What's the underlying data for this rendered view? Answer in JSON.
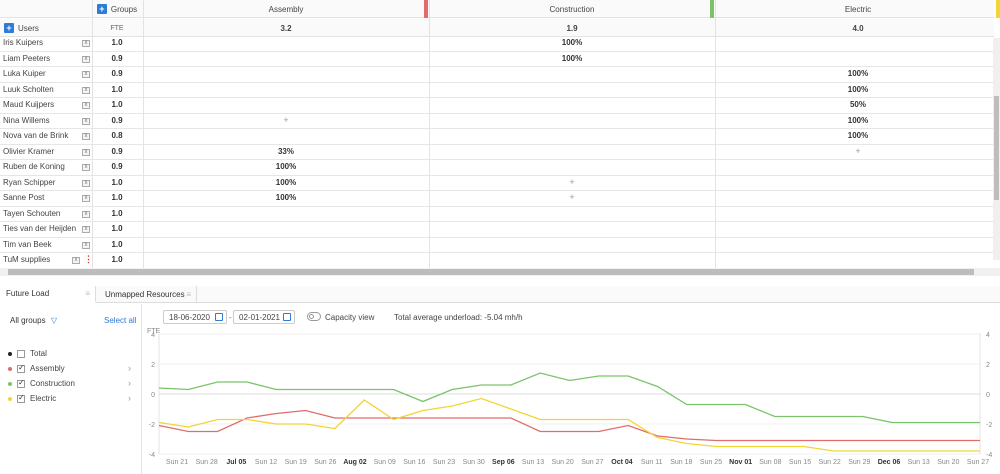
{
  "grid": {
    "groups_label": "Groups",
    "users_label": "Users",
    "fte_label": "FTE",
    "groups": [
      {
        "name": "Assembly",
        "fte": "3.2",
        "color": "#e06c6c"
      },
      {
        "name": "Construction",
        "fte": "1.9",
        "color": "#7ac36a"
      },
      {
        "name": "Electric",
        "fte": "4.0",
        "color": "#f2d534"
      }
    ],
    "rows": [
      {
        "name": "Iris Kuipers",
        "fte": "1.0",
        "cells": [
          "",
          "100%",
          ""
        ]
      },
      {
        "name": "Liam Peeters",
        "fte": "0.9",
        "cells": [
          "",
          "100%",
          ""
        ]
      },
      {
        "name": "Luka Kuiper",
        "fte": "0.9",
        "cells": [
          "",
          "",
          "100%"
        ]
      },
      {
        "name": "Luuk Scholten",
        "fte": "1.0",
        "cells": [
          "",
          "",
          "100%"
        ]
      },
      {
        "name": "Maud Kuijpers",
        "fte": "1.0",
        "cells": [
          "",
          "",
          "50%"
        ]
      },
      {
        "name": "Nina Willems",
        "fte": "0.9",
        "cells": [
          "+",
          "",
          "100%"
        ]
      },
      {
        "name": "Nova van de Brink",
        "fte": "0.8",
        "cells": [
          "",
          "",
          "100%"
        ]
      },
      {
        "name": "Olivier Kramer",
        "fte": "0.9",
        "cells": [
          "33%",
          "",
          "+"
        ]
      },
      {
        "name": "Ruben de Koning",
        "fte": "0.9",
        "cells": [
          "100%",
          "",
          ""
        ]
      },
      {
        "name": "Ryan Schipper",
        "fte": "1.0",
        "cells": [
          "100%",
          "+",
          ""
        ]
      },
      {
        "name": "Sanne Post",
        "fte": "1.0",
        "cells": [
          "100%",
          "+",
          ""
        ]
      },
      {
        "name": "Tayen Schouten",
        "fte": "1.0",
        "cells": [
          "",
          "",
          ""
        ]
      },
      {
        "name": "Ties van der Heijden",
        "fte": "1.0",
        "cells": [
          "",
          "",
          ""
        ]
      },
      {
        "name": "Tim van Beek",
        "fte": "1.0",
        "cells": [
          "",
          "",
          ""
        ]
      },
      {
        "name": "TuM supplies",
        "fte": "1.0",
        "cells": [
          "",
          "",
          ""
        ]
      }
    ]
  },
  "tabs": {
    "future_load": "Future Load",
    "unmapped": "Unmapped Resources"
  },
  "filters": {
    "all_groups": "All groups",
    "select_all": "Select all",
    "items": [
      {
        "label": "Total",
        "color": "#222222",
        "checked": false
      },
      {
        "label": "Assembly",
        "color": "#e06c6c",
        "checked": true
      },
      {
        "label": "Construction",
        "color": "#7ac36a",
        "checked": true
      },
      {
        "label": "Electric",
        "color": "#f2d534",
        "checked": true
      }
    ]
  },
  "toolbar": {
    "date_from": "18-06-2020",
    "date_sep": "-",
    "date_to": "02-01-2021",
    "capacity_view": "Capacity view",
    "underload": "Total average underload: -5.04 mh/h"
  },
  "chart_data": {
    "type": "line",
    "ylabel": "FTE",
    "ylim": [
      -4,
      4
    ],
    "y_ticks": [
      "4",
      "2",
      "0",
      "-2",
      "-4"
    ],
    "x_ticks": [
      "Sun 21",
      "Sun 28",
      "Jul 05",
      "Sun 12",
      "Sun 19",
      "Sun 26",
      "Aug 02",
      "Sun 09",
      "Sun 16",
      "Sun 23",
      "Sun 30",
      "Sep 06",
      "Sun 13",
      "Sun 20",
      "Sun 27",
      "Oct 04",
      "Sun 11",
      "Sun 18",
      "Sun 25",
      "Nov 01",
      "Sun 08",
      "Sun 15",
      "Sun 22",
      "Sun 29",
      "Dec 06",
      "Sun 13",
      "Sun 20",
      "Sun 27"
    ],
    "bold_ticks": [
      "Jul 05",
      "Aug 02",
      "Sep 06",
      "Oct 04",
      "Nov 01",
      "Dec 06"
    ],
    "series": [
      {
        "name": "Construction",
        "color": "#7ac36a",
        "values": [
          0.4,
          0.3,
          0.8,
          0.8,
          0.3,
          0.3,
          0.3,
          0.3,
          0.3,
          -0.5,
          0.3,
          0.6,
          0.6,
          1.4,
          0.9,
          1.2,
          1.2,
          0.5,
          -0.7,
          -0.7,
          -0.7,
          -1.5,
          -1.5,
          -1.5,
          -1.5,
          -1.9,
          -1.9,
          -1.9,
          -1.9
        ]
      },
      {
        "name": "Assembly",
        "color": "#e06c6c",
        "values": [
          -2.1,
          -2.5,
          -2.5,
          -1.6,
          -1.3,
          -1.1,
          -1.6,
          -1.6,
          -1.6,
          -1.6,
          -1.6,
          -1.6,
          -1.6,
          -2.5,
          -2.5,
          -2.5,
          -2.1,
          -2.8,
          -3.0,
          -3.1,
          -3.1,
          -3.1,
          -3.1,
          -3.1,
          -3.1,
          -3.1,
          -3.1,
          -3.1,
          -3.1
        ]
      },
      {
        "name": "Electric",
        "color": "#f2d534",
        "values": [
          -1.9,
          -2.2,
          -1.7,
          -1.7,
          -2.0,
          -2.0,
          -2.3,
          -0.4,
          -1.7,
          -1.1,
          -0.8,
          -0.3,
          -1.0,
          -1.7,
          -1.7,
          -1.7,
          -1.7,
          -2.9,
          -3.3,
          -3.5,
          -3.5,
          -3.5,
          -3.5,
          -3.8,
          -3.8,
          -3.8,
          -3.8,
          -3.8,
          -3.8
        ]
      }
    ]
  }
}
